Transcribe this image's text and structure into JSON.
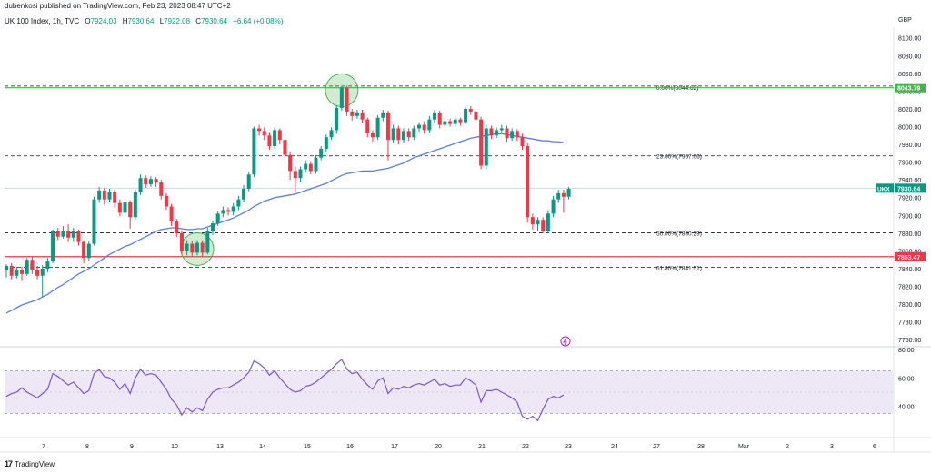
{
  "header": {
    "published": "dubenkosi published on TradingView.com, Feb 23, 2023 08:47 UTC+2",
    "symbol": "UK 100 Index, 1h, TVC",
    "o_label": "O",
    "o_value": "7924.03",
    "h_label": "H",
    "h_value": "7930.64",
    "l_label": "L",
    "l_value": "7922.08",
    "c_label": "C",
    "c_value": "7930.64",
    "change": "+6.64 (+0.08%)",
    "currency": "GBP"
  },
  "footer": {
    "brand": "TradingView",
    "logo": "17"
  },
  "colors": {
    "up": "#089981",
    "down": "#f23645",
    "ma": "#5b7fdb",
    "rsi": "#7e57c2",
    "rsi_band": "#ede7f6",
    "fib": "#131722",
    "green_line": "#4caf50",
    "red_line": "#f23645",
    "circle": "#4caf50"
  },
  "chart_data": [
    {
      "type": "candlestick",
      "title": "UK 100 Index, 1h, TVC",
      "x_tick_labels": [
        "7",
        "8",
        "9",
        "10",
        "13",
        "14",
        "15",
        "16",
        "17",
        "20",
        "21",
        "22",
        "23",
        "24",
        "27",
        "28",
        "Mar",
        "2",
        "3",
        "6"
      ],
      "y_tick_labels": [
        "8100.00",
        "8080.00",
        "8060.00",
        "8040.00",
        "8020.00",
        "8000.00",
        "7980.00",
        "7960.00",
        "7940.00",
        "7920.00",
        "7900.00",
        "7880.00",
        "7860.00",
        "7840.00",
        "7820.00",
        "7800.00",
        "7780.00",
        "7760.00"
      ],
      "ylim": [
        7752,
        8112
      ],
      "price_labels": [
        {
          "name": "green-level",
          "value": 8043.79,
          "text": "8043.79"
        },
        {
          "name": "red-level",
          "value": 7853.47,
          "text": "7853.47"
        },
        {
          "name": "last-price",
          "value": 7930.64,
          "text": "7930.64",
          "symbol": "UKX"
        }
      ],
      "fib_levels": [
        {
          "ratio": "0.00%",
          "value": 8044.62,
          "text": "0.00%(8044.62)"
        },
        {
          "ratio": "23.60%",
          "value": 7967.06,
          "text": "23.60%(7967.06)"
        },
        {
          "ratio": "50.00%",
          "value": 7880.29,
          "text": "50.00%(7880.29)"
        },
        {
          "ratio": "61.80%",
          "value": 7841.51,
          "text": "61.80%(7841.51)"
        }
      ],
      "candles": [
        [
          7838,
          7843,
          7830,
          7845
        ],
        [
          7843,
          7832,
          7828,
          7846
        ],
        [
          7832,
          7838,
          7829,
          7842
        ],
        [
          7838,
          7834,
          7826,
          7842
        ],
        [
          7834,
          7850,
          7832,
          7852
        ],
        [
          7850,
          7838,
          7834,
          7854
        ],
        [
          7838,
          7832,
          7828,
          7843
        ],
        [
          7832,
          7840,
          7808,
          7844
        ],
        [
          7840,
          7848,
          7836,
          7852
        ],
        [
          7848,
          7882,
          7846,
          7884
        ],
        [
          7882,
          7876,
          7872,
          7886
        ],
        [
          7876,
          7882,
          7874,
          7888
        ],
        [
          7882,
          7875,
          7870,
          7890
        ],
        [
          7875,
          7882,
          7870,
          7886
        ],
        [
          7882,
          7870,
          7866,
          7884
        ],
        [
          7870,
          7852,
          7846,
          7872
        ],
        [
          7852,
          7868,
          7848,
          7871
        ],
        [
          7868,
          7918,
          7866,
          7921
        ],
        [
          7918,
          7928,
          7914,
          7932
        ],
        [
          7928,
          7918,
          7912,
          7931
        ],
        [
          7918,
          7926,
          7915,
          7930
        ],
        [
          7926,
          7914,
          7909,
          7929
        ],
        [
          7914,
          7903,
          7899,
          7918
        ],
        [
          7903,
          7915,
          7900,
          7919
        ],
        [
          7915,
          7898,
          7885,
          7917
        ],
        [
          7898,
          7926,
          7895,
          7929
        ],
        [
          7926,
          7942,
          7923,
          7946
        ],
        [
          7942,
          7935,
          7931,
          7945
        ],
        [
          7935,
          7941,
          7932,
          7944
        ],
        [
          7941,
          7937,
          7932,
          7943
        ],
        [
          7937,
          7922,
          7918,
          7940
        ],
        [
          7922,
          7910,
          7906,
          7925
        ],
        [
          7910,
          7893,
          7888,
          7913
        ],
        [
          7893,
          7880,
          7876,
          7896
        ],
        [
          7880,
          7860,
          7856,
          7883
        ],
        [
          7860,
          7868,
          7855,
          7872
        ],
        [
          7868,
          7858,
          7854,
          7871
        ],
        [
          7858,
          7869,
          7855,
          7872
        ],
        [
          7869,
          7858,
          7853,
          7872
        ],
        [
          7858,
          7882,
          7856,
          7886
        ],
        [
          7882,
          7891,
          7878,
          7894
        ],
        [
          7891,
          7902,
          7888,
          7905
        ],
        [
          7902,
          7906,
          7898,
          7910
        ],
        [
          7906,
          7904,
          7900,
          7909
        ],
        [
          7904,
          7910,
          7900,
          7914
        ],
        [
          7910,
          7918,
          7906,
          7922
        ],
        [
          7918,
          7930,
          7915,
          7934
        ],
        [
          7930,
          7946,
          7927,
          7949
        ],
        [
          7946,
          7998,
          7943,
          8000
        ],
        [
          7998,
          7995,
          7990,
          8002
        ],
        [
          7995,
          7990,
          7985,
          7999
        ],
        [
          7990,
          7978,
          7974,
          7994
        ],
        [
          7978,
          7996,
          7975,
          7999
        ],
        [
          7996,
          7985,
          7980,
          7998
        ],
        [
          7985,
          7968,
          7962,
          7988
        ],
        [
          7968,
          7950,
          7940,
          7972
        ],
        [
          7950,
          7942,
          7927,
          7955
        ],
        [
          7942,
          7952,
          7938,
          7955
        ],
        [
          7952,
          7958,
          7948,
          7962
        ],
        [
          7958,
          7950,
          7946,
          7961
        ],
        [
          7950,
          7965,
          7947,
          7968
        ],
        [
          7965,
          7975,
          7962,
          7978
        ],
        [
          7975,
          7988,
          7972,
          7991
        ],
        [
          7988,
          7996,
          7985,
          7999
        ],
        [
          7996,
          8021,
          7992,
          8024
        ],
        [
          8021,
          8044,
          8018,
          8046
        ],
        [
          8044,
          8017,
          8012,
          8046
        ],
        [
          8017,
          8012,
          8007,
          8020
        ],
        [
          8012,
          8016,
          8009,
          8019
        ],
        [
          8016,
          8008,
          8004,
          8019
        ],
        [
          8008,
          7993,
          7988,
          8010
        ],
        [
          7993,
          7988,
          7983,
          7996
        ],
        [
          7988,
          8010,
          7985,
          8013
        ],
        [
          8010,
          8016,
          8006,
          8019
        ],
        [
          8016,
          7985,
          7962,
          8018
        ],
        [
          7985,
          7998,
          7982,
          8002
        ],
        [
          7998,
          7985,
          7980,
          8001
        ],
        [
          7985,
          7995,
          7981,
          7998
        ],
        [
          7995,
          7988,
          7984,
          7998
        ],
        [
          7988,
          7998,
          7985,
          8001
        ],
        [
          7998,
          8002,
          7994,
          8005
        ],
        [
          8002,
          7996,
          7992,
          8006
        ],
        [
          7996,
          8008,
          7993,
          8012
        ],
        [
          8008,
          8016,
          8004,
          8019
        ],
        [
          8016,
          8002,
          7998,
          8018
        ],
        [
          8002,
          8006,
          7999,
          8009
        ],
        [
          8006,
          8003,
          8000,
          8009
        ],
        [
          8003,
          8008,
          8000,
          8011
        ],
        [
          8008,
          8005,
          8001,
          8010
        ],
        [
          8005,
          8020,
          8003,
          8022
        ],
        [
          8020,
          8017,
          8013,
          8023
        ],
        [
          8017,
          8008,
          8004,
          8020
        ],
        [
          8008,
          7956,
          7952,
          8011
        ],
        [
          7956,
          7998,
          7952,
          8002
        ],
        [
          7998,
          7990,
          7986,
          8001
        ],
        [
          7990,
          7996,
          7987,
          7999
        ],
        [
          7996,
          7998,
          7993,
          8002
        ],
        [
          7998,
          7987,
          7983,
          8001
        ],
        [
          7987,
          7995,
          7984,
          7998
        ],
        [
          7995,
          7988,
          7984,
          7997
        ],
        [
          7988,
          7978,
          7974,
          7992
        ],
        [
          7978,
          7898,
          7892,
          7981
        ],
        [
          7898,
          7890,
          7884,
          7902
        ],
        [
          7890,
          7895,
          7882,
          7898
        ],
        [
          7895,
          7882,
          7880,
          7898
        ],
        [
          7882,
          7902,
          7880,
          7906
        ],
        [
          7902,
          7918,
          7898,
          7922
        ],
        [
          7918,
          7925,
          7914,
          7929
        ],
        [
          7925,
          7921,
          7903,
          7929
        ],
        [
          7921,
          7930,
          7918,
          7932
        ]
      ],
      "ma_series": [
        7790,
        7793,
        7796,
        7799,
        7801,
        7803,
        7805,
        7808,
        7811,
        7815,
        7819,
        7822,
        7826,
        7830,
        7834,
        7837,
        7840,
        7844,
        7848,
        7852,
        7856,
        7859,
        7862,
        7865,
        7867,
        7870,
        7873,
        7876,
        7879,
        7882,
        7884,
        7885,
        7886,
        7886,
        7885,
        7884,
        7884,
        7885,
        7885,
        7887,
        7889,
        7891,
        7893,
        7895,
        7897,
        7900,
        7903,
        7906,
        7910,
        7913,
        7916,
        7918,
        7920,
        7921,
        7922,
        7923,
        7924,
        7926,
        7928,
        7930,
        7932,
        7934,
        7936,
        7939,
        7942,
        7945,
        7947,
        7948,
        7949,
        7950,
        7950,
        7950,
        7951,
        7952,
        7953,
        7955,
        7957,
        7959,
        7962,
        7965,
        7967,
        7969,
        7971,
        7973,
        7975,
        7977,
        7979,
        7981,
        7983,
        7985,
        7987,
        7988,
        7989,
        7990,
        7991,
        7992,
        7992,
        7991,
        7990,
        7989,
        7988,
        7987,
        7986,
        7985,
        7984,
        7984,
        7983,
        7983,
        7982
      ],
      "rsi_series": [
        47,
        49,
        50,
        53,
        50,
        48,
        46,
        49,
        52,
        63,
        61,
        58,
        55,
        57,
        53,
        49,
        51,
        63,
        66,
        61,
        60,
        57,
        52,
        56,
        49,
        60,
        66,
        62,
        63,
        62,
        57,
        52,
        45,
        41,
        34,
        39,
        36,
        39,
        37,
        45,
        50,
        52,
        53,
        53,
        55,
        57,
        60,
        64,
        72,
        70,
        67,
        62,
        65,
        60,
        56,
        52,
        50,
        51,
        54,
        55,
        57,
        60,
        63,
        66,
        70,
        73,
        66,
        63,
        64,
        59,
        55,
        52,
        58,
        60,
        49,
        53,
        52,
        54,
        53,
        55,
        56,
        55,
        57,
        59,
        55,
        56,
        54,
        55,
        55,
        60,
        58,
        55,
        43,
        51,
        51,
        52,
        50,
        48,
        46,
        43,
        33,
        31,
        33,
        30,
        38,
        45,
        47,
        46,
        48
      ],
      "rsi_axis_labels": [
        "80.00",
        "60.00",
        "40.00"
      ],
      "rsi_band": [
        65,
        35
      ],
      "rsi_midline": 50,
      "rsi_ylim": [
        20,
        80
      ]
    }
  ]
}
